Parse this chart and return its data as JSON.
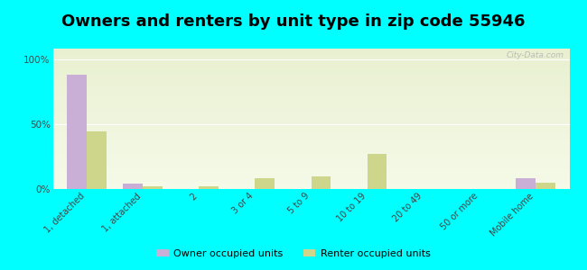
{
  "title": "Owners and renters by unit type in zip code 55946",
  "categories": [
    "1, detached",
    "1, attached",
    "2",
    "3 or 4",
    "5 to 9",
    "10 to 19",
    "20 to 49",
    "50 or more",
    "Mobile home"
  ],
  "owner_values": [
    88,
    4,
    0,
    0,
    0,
    0,
    0,
    0,
    8
  ],
  "renter_values": [
    44,
    2,
    2,
    8,
    10,
    27,
    0,
    0,
    5
  ],
  "owner_color": "#c9aed6",
  "renter_color": "#cdd68a",
  "background_color": "#00ffff",
  "plot_bg_top": "#e8f0d0",
  "plot_bg_bottom": "#f5fae8",
  "yticks": [
    0,
    50,
    100
  ],
  "ylabels": [
    "0%",
    "50%",
    "100%"
  ],
  "ylim": [
    0,
    108
  ],
  "legend_owner": "Owner occupied units",
  "legend_renter": "Renter occupied units",
  "watermark": "City-Data.com",
  "title_fontsize": 13,
  "bar_width": 0.35,
  "tick_color": "#666666",
  "label_color": "#444444"
}
